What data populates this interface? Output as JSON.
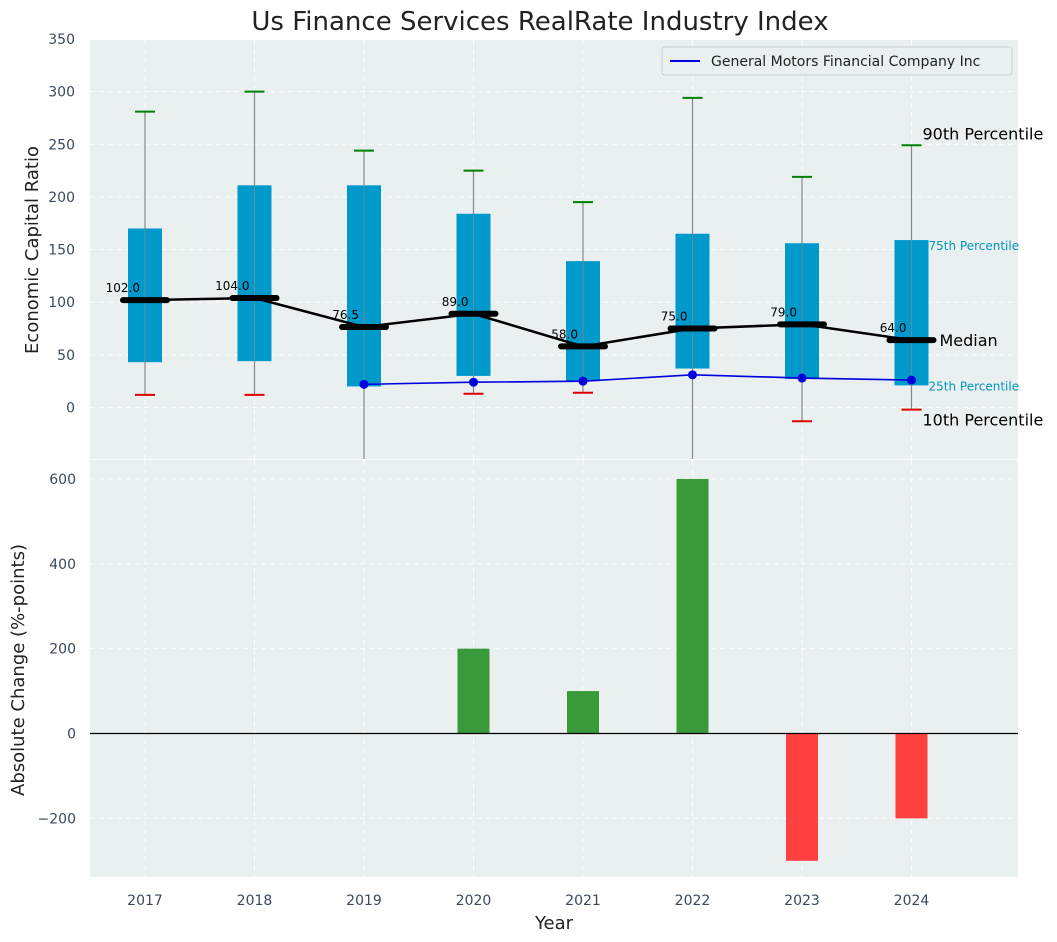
{
  "chart_data": [
    {
      "type": "box",
      "title": "Us Finance Services RealRate Industry Index",
      "ylabel": "Economic Capital Ratio",
      "ylim": [
        -50,
        350
      ],
      "yticks": [
        0,
        50,
        100,
        150,
        200,
        250,
        300,
        350
      ],
      "grid": true,
      "legend_position": "top-right",
      "categories": [
        "2017",
        "2018",
        "2019",
        "2020",
        "2021",
        "2022",
        "2023",
        "2024"
      ],
      "p10": [
        12,
        12,
        -52,
        13,
        14,
        -52,
        -13,
        -2
      ],
      "p25": [
        43,
        44,
        20,
        30,
        25,
        37,
        27,
        21
      ],
      "median": [
        102.0,
        104.0,
        76.5,
        89.0,
        58.0,
        75.0,
        79.0,
        64.0
      ],
      "p75": [
        170,
        211,
        211,
        184,
        139,
        165,
        156,
        159
      ],
      "p90": [
        281,
        300,
        244,
        225,
        195,
        294,
        219,
        249
      ],
      "series": [
        {
          "name": "General Motors Financial Company Inc",
          "color": "#0000dd",
          "x": [
            "2019",
            "2020",
            "2021",
            "2022",
            "2023",
            "2024"
          ],
          "values": [
            22,
            24,
            25,
            31,
            28,
            26
          ]
        }
      ],
      "median_labels": [
        "102.0",
        "104.0",
        "76.5",
        "89.0",
        "58.0",
        "75.0",
        "79.0",
        "64.0"
      ],
      "annotations": {
        "p90": "90th Percentile",
        "p75": "75th Percentile",
        "median": "Median",
        "p25": "25th Percentile",
        "p10": "10th Percentile"
      },
      "colors": {
        "box": "#0099cc",
        "median": "#000000",
        "p90_cap": "#008000",
        "p10_cap": "#dd0000",
        "whisker": "#888888",
        "background": "#eaeff0",
        "p_label": "#0099bb"
      }
    },
    {
      "type": "bar",
      "ylabel": "Absolute Change (%-points)",
      "xlabel": "Year",
      "ylim": [
        -340,
        640
      ],
      "yticks": [
        -200,
        0,
        200,
        400,
        600
      ],
      "grid": true,
      "categories": [
        "2017",
        "2018",
        "2019",
        "2020",
        "2021",
        "2022",
        "2023",
        "2024"
      ],
      "values": [
        0,
        0,
        0,
        200,
        100,
        600,
        -300,
        -200
      ],
      "colors": {
        "positive": "#3a9a3a",
        "negative": "#ff4040",
        "zero_line": "#000000"
      }
    }
  ]
}
